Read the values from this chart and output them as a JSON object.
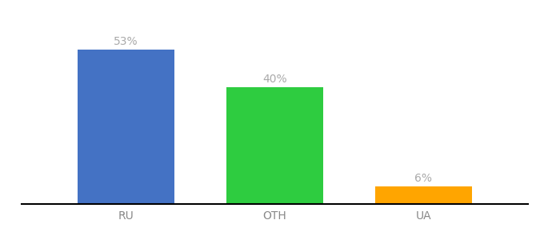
{
  "categories": [
    "RU",
    "OTH",
    "UA"
  ],
  "values": [
    53,
    40,
    6
  ],
  "bar_colors": [
    "#4472C4",
    "#2ECC40",
    "#FFA500"
  ],
  "value_labels": [
    "53%",
    "40%",
    "6%"
  ],
  "background_color": "#ffffff",
  "ylim": [
    0,
    60
  ],
  "bar_width": 0.65,
  "label_fontsize": 10,
  "tick_fontsize": 10,
  "label_color": "#aaaaaa"
}
